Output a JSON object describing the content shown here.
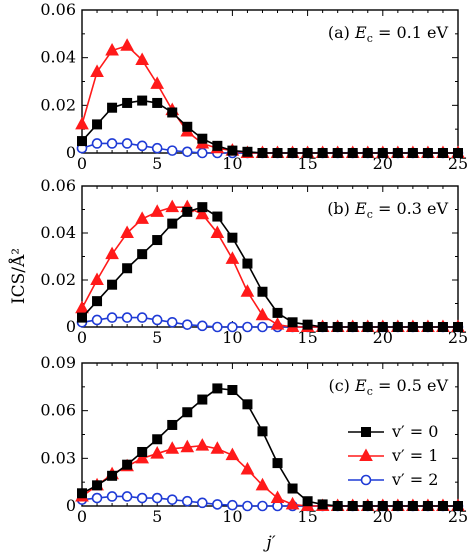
{
  "figure": {
    "ylabel": "ICS/Å²",
    "xlabel": "j′"
  },
  "legend": {
    "entries": [
      {
        "label": "v′ = 0",
        "color": "#000000",
        "marker": "square-filled"
      },
      {
        "label": "v′ = 1",
        "color": "#ff1a1a",
        "marker": "triangle-filled"
      },
      {
        "label": "v′ = 2",
        "color": "#1f3bd6",
        "marker": "circle-open"
      }
    ],
    "panel": 2,
    "placement": "bottom-right"
  },
  "chart_data": [
    {
      "type": "line",
      "panel_label": "(a)",
      "annotation": "(a) Ec = 0.1 eV",
      "xlabel": "",
      "ylabel": "ICS/Å²",
      "xlim": [
        0,
        25
      ],
      "ylim": [
        0,
        0.06
      ],
      "xticks": [
        0,
        5,
        10,
        15,
        20,
        25
      ],
      "yticks": [
        0,
        0.02,
        0.04,
        0.06
      ],
      "ytick_labels": [
        "0",
        "0.02",
        "0.04",
        "0.06"
      ],
      "x": [
        0,
        1,
        2,
        3,
        4,
        5,
        6,
        7,
        8,
        9,
        10,
        11,
        12,
        13,
        14,
        15,
        16,
        17,
        18,
        19,
        20,
        21,
        22,
        23,
        24,
        25
      ],
      "series": [
        {
          "name": "v′ = 0",
          "color": "#000000",
          "marker": "square",
          "values": [
            0.005,
            0.012,
            0.019,
            0.021,
            0.022,
            0.021,
            0.017,
            0.011,
            0.006,
            0.003,
            0.001,
            0.0005,
            0,
            0,
            0,
            0,
            0,
            0,
            0,
            0,
            0,
            0,
            0,
            0,
            0,
            0
          ]
        },
        {
          "name": "v′ = 1",
          "color": "#ff1a1a",
          "marker": "triangle",
          "values": [
            0.012,
            0.034,
            0.043,
            0.045,
            0.039,
            0.029,
            0.018,
            0.009,
            0.004,
            0.002,
            0.001,
            0,
            0,
            0,
            0,
            0,
            0,
            0,
            0,
            0,
            0,
            0,
            0,
            0,
            0,
            0
          ]
        },
        {
          "name": "v′ = 2",
          "color": "#1f3bd6",
          "marker": "circle",
          "values": [
            0.002,
            0.004,
            0.004,
            0.004,
            0.003,
            0.002,
            0.001,
            0.0005,
            0,
            0,
            0,
            0,
            0,
            0,
            0,
            0,
            0,
            0,
            0,
            0,
            0,
            0,
            0,
            0,
            0,
            0
          ]
        }
      ]
    },
    {
      "type": "line",
      "panel_label": "(b)",
      "annotation": "(b) Ec = 0.3 eV",
      "xlabel": "",
      "ylabel": "ICS/Å²",
      "xlim": [
        0,
        25
      ],
      "ylim": [
        0,
        0.06
      ],
      "xticks": [
        0,
        5,
        10,
        15,
        20,
        25
      ],
      "yticks": [
        0,
        0.02,
        0.04,
        0.06
      ],
      "ytick_labels": [
        "0",
        "0.02",
        "0.04",
        "0.06"
      ],
      "x": [
        0,
        1,
        2,
        3,
        4,
        5,
        6,
        7,
        8,
        9,
        10,
        11,
        12,
        13,
        14,
        15,
        16,
        17,
        18,
        19,
        20,
        21,
        22,
        23,
        24,
        25
      ],
      "series": [
        {
          "name": "v′ = 0",
          "color": "#000000",
          "marker": "square",
          "values": [
            0.004,
            0.011,
            0.018,
            0.025,
            0.031,
            0.037,
            0.044,
            0.049,
            0.051,
            0.047,
            0.038,
            0.027,
            0.015,
            0.006,
            0.002,
            0.001,
            0,
            0,
            0,
            0,
            0,
            0,
            0,
            0,
            0,
            0
          ]
        },
        {
          "name": "v′ = 1",
          "color": "#ff1a1a",
          "marker": "triangle",
          "values": [
            0.008,
            0.02,
            0.031,
            0.04,
            0.046,
            0.049,
            0.051,
            0.051,
            0.048,
            0.04,
            0.029,
            0.015,
            0.005,
            0.001,
            0,
            0,
            0,
            0,
            0,
            0,
            0,
            0,
            0,
            0,
            0,
            0
          ]
        },
        {
          "name": "v′ = 2",
          "color": "#1f3bd6",
          "marker": "circle",
          "values": [
            0.002,
            0.003,
            0.004,
            0.004,
            0.004,
            0.003,
            0.002,
            0.001,
            0.0005,
            0,
            0,
            0,
            0,
            0,
            0,
            0,
            0,
            0,
            0,
            0,
            0,
            0,
            0,
            0,
            0,
            0
          ]
        }
      ]
    },
    {
      "type": "line",
      "panel_label": "(c)",
      "annotation": "(c) Ec = 0.5 eV",
      "xlabel": "j′",
      "ylabel": "ICS/Å²",
      "xlim": [
        0,
        25
      ],
      "ylim": [
        0,
        0.09
      ],
      "xticks": [
        0,
        5,
        10,
        15,
        20,
        25
      ],
      "yticks": [
        0,
        0.03,
        0.06,
        0.09
      ],
      "ytick_labels": [
        "0",
        "0.03",
        "0.06",
        "0.09"
      ],
      "x": [
        0,
        1,
        2,
        3,
        4,
        5,
        6,
        7,
        8,
        9,
        10,
        11,
        12,
        13,
        14,
        15,
        16,
        17,
        18,
        19,
        20,
        21,
        22,
        23,
        24,
        25
      ],
      "series": [
        {
          "name": "v′ = 0",
          "color": "#000000",
          "marker": "square",
          "values": [
            0.008,
            0.013,
            0.019,
            0.026,
            0.034,
            0.042,
            0.051,
            0.059,
            0.067,
            0.074,
            0.073,
            0.064,
            0.047,
            0.027,
            0.011,
            0.003,
            0.001,
            0,
            0,
            0,
            0,
            0,
            0,
            0,
            0,
            0
          ]
        },
        {
          "name": "v′ = 1",
          "color": "#ff1a1a",
          "marker": "triangle",
          "values": [
            0.006,
            0.013,
            0.02,
            0.025,
            0.03,
            0.033,
            0.036,
            0.037,
            0.038,
            0.036,
            0.032,
            0.023,
            0.013,
            0.005,
            0.001,
            0,
            0,
            0,
            0,
            0,
            0,
            0,
            0,
            0,
            0,
            0
          ]
        },
        {
          "name": "v′ = 2",
          "color": "#1f3bd6",
          "marker": "circle",
          "values": [
            0.004,
            0.005,
            0.006,
            0.006,
            0.005,
            0.005,
            0.004,
            0.003,
            0.002,
            0.001,
            0.0005,
            0,
            0,
            0,
            0,
            0,
            0,
            0,
            0,
            0,
            0,
            0,
            0,
            0,
            0,
            0
          ]
        }
      ]
    }
  ]
}
